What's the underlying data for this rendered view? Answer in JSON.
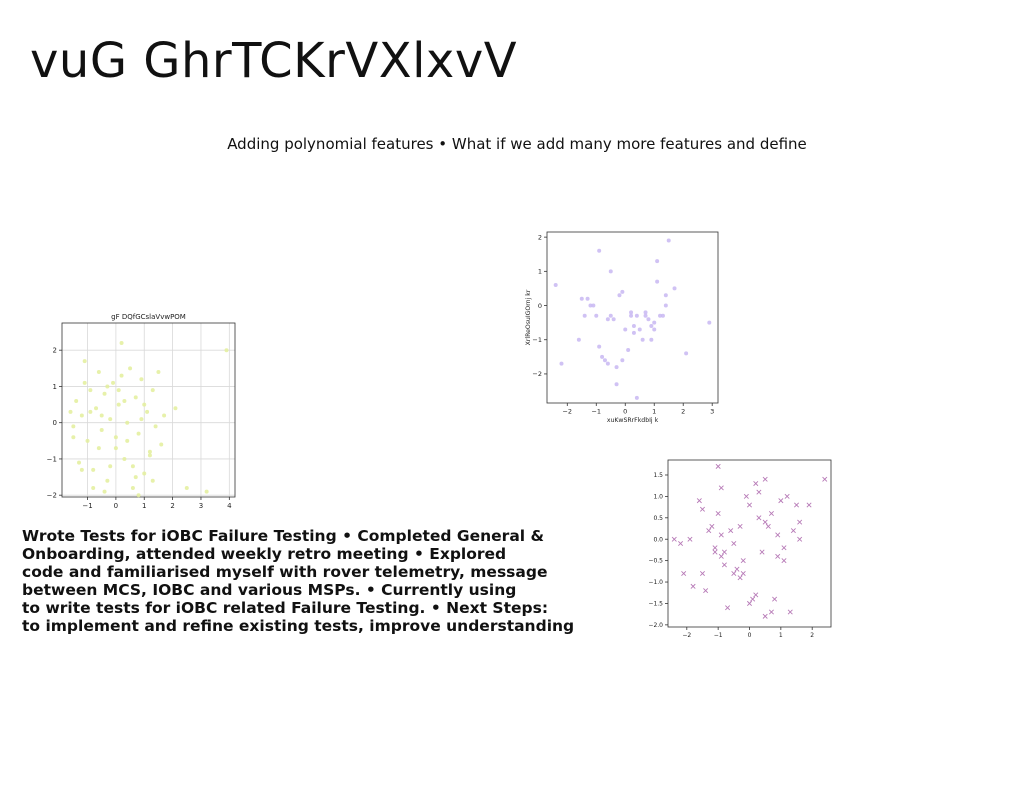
{
  "slide": {
    "title": "vuG GhrTCKrVXlxvV",
    "subtitle": "Adding polynomial features • What if we add many more features and define",
    "body": "Wrote Tests for iOBC Failure Testing • Completed General &\nOnboarding, attended weekly retro meeting • Explored\ncode and familiarised myself with rover telemetry, message\nbetween MCS, IOBC and various MSPs. • Currently using\nto write tests for iOBC related Failure Testing. • Next Steps:\nto implement and refine existing tests, improve understanding"
  },
  "chart_data": [
    {
      "type": "scatter",
      "title": "gF DQfGCslaVvwPOM",
      "xlabel": "",
      "ylabel": "",
      "xlim": [
        -1.9,
        4.2
      ],
      "ylim": [
        -2.05,
        2.75
      ],
      "xticks": [
        -1,
        0,
        1,
        2,
        3,
        4
      ],
      "yticks": [
        -2,
        -1,
        0,
        1,
        2
      ],
      "grid": true,
      "marker": "circle",
      "color": "#e3ef9b",
      "x": [
        -1.6,
        -1.5,
        -1.4,
        -1.3,
        -1.2,
        -1.1,
        -1.0,
        -0.9,
        -0.8,
        -0.7,
        -0.6,
        -0.5,
        -0.4,
        -0.3,
        -0.2,
        -0.1,
        0.0,
        0.1,
        0.2,
        0.3,
        0.4,
        0.5,
        0.6,
        0.7,
        0.8,
        0.9,
        1.0,
        1.1,
        1.2,
        1.3,
        1.4,
        1.5,
        1.6,
        1.7,
        2.1,
        2.5,
        3.2,
        3.9,
        -1.5,
        -1.2,
        -0.9,
        -0.6,
        -0.3,
        0.0,
        0.3,
        0.6,
        0.9,
        1.2,
        -1.1,
        -0.8,
        -0.5,
        -0.2,
        0.1,
        0.4,
        0.7,
        1.0,
        1.3,
        -0.4,
        0.2,
        0.8
      ],
      "y": [
        0.3,
        -0.4,
        0.6,
        -1.1,
        0.2,
        1.7,
        -0.5,
        0.9,
        -1.3,
        0.4,
        1.4,
        -0.2,
        0.8,
        -1.6,
        0.1,
        1.1,
        -0.7,
        0.5,
        2.2,
        -1.0,
        0.0,
        1.5,
        -1.8,
        0.7,
        -0.3,
        1.2,
        -1.4,
        0.3,
        -0.8,
        0.9,
        -0.1,
        1.4,
        -0.6,
        0.2,
        0.4,
        -1.8,
        -1.9,
        2.0,
        -0.1,
        -1.3,
        0.3,
        -0.7,
        1.0,
        -0.4,
        0.6,
        -1.2,
        0.1,
        -0.9,
        1.1,
        -1.8,
        0.2,
        -1.2,
        0.9,
        -0.5,
        -1.5,
        0.5,
        -1.6,
        -1.9,
        1.3,
        -2.0
      ]
    },
    {
      "type": "scatter",
      "title": "",
      "xlabel": "xuKwSRrFkdbIj k",
      "ylabel": "XrlReOsuIGOrnj kr",
      "xlim": [
        -2.7,
        3.2
      ],
      "ylim": [
        -2.85,
        2.15
      ],
      "xticks": [
        -2,
        -1,
        0,
        1,
        2,
        3
      ],
      "yticks": [
        -2,
        -1,
        0,
        1,
        2
      ],
      "grid": false,
      "marker": "circle",
      "color": "#c8b7f2",
      "x": [
        -2.4,
        -2.2,
        -1.6,
        -1.5,
        -1.4,
        -1.3,
        -1.1,
        -1.0,
        -0.9,
        -0.8,
        -0.7,
        -0.6,
        -0.5,
        -0.4,
        -0.3,
        -0.2,
        -0.1,
        0.0,
        0.1,
        0.2,
        0.3,
        0.4,
        0.5,
        0.6,
        0.7,
        0.8,
        0.9,
        1.0,
        1.1,
        1.2,
        1.3,
        1.4,
        1.5,
        1.7,
        2.1,
        2.9,
        -1.2,
        -0.9,
        -0.5,
        -0.1,
        0.3,
        0.7,
        1.1,
        1.4,
        -0.3,
        0.4,
        1.0,
        -0.6,
        0.2,
        0.9
      ],
      "y": [
        0.6,
        -1.7,
        -1.0,
        0.2,
        -0.3,
        0.2,
        0.0,
        -0.3,
        -1.2,
        -1.5,
        -1.6,
        -0.4,
        1.0,
        -0.4,
        -2.3,
        0.3,
        -1.6,
        -0.7,
        -1.3,
        -0.2,
        -0.6,
        -0.3,
        -0.7,
        -1.0,
        -0.3,
        -0.4,
        -1.0,
        -0.5,
        0.7,
        -0.3,
        -0.3,
        0.3,
        1.9,
        0.5,
        -1.4,
        -0.5,
        0.0,
        1.6,
        -0.3,
        0.4,
        -0.8,
        -0.2,
        1.3,
        0.0,
        -1.8,
        -2.7,
        -0.7,
        -1.7,
        -0.3,
        -0.6
      ]
    },
    {
      "type": "scatter",
      "title": "",
      "xlabel": "",
      "ylabel": "",
      "xlim": [
        -2.6,
        2.6
      ],
      "ylim": [
        -2.05,
        1.85
      ],
      "xticks": [
        -2,
        -1,
        0,
        1,
        2
      ],
      "yticks": [
        -2.0,
        -1.5,
        -1.0,
        -0.5,
        0.0,
        0.5,
        1.0,
        1.5
      ],
      "ytick_labels": [
        "−2.0",
        "−1.5",
        "−1.0",
        "−0.5",
        "0.0",
        "0.5",
        "1.0",
        "1.5"
      ],
      "grid": false,
      "marker": "x",
      "color": "#b77ab7",
      "x": [
        -2.4,
        -2.2,
        -2.1,
        -1.9,
        -1.8,
        -1.6,
        -1.5,
        -1.4,
        -1.3,
        -1.2,
        -1.1,
        -1.0,
        -1.0,
        -0.9,
        -0.9,
        -0.8,
        -0.7,
        -0.6,
        -0.5,
        -0.4,
        -0.3,
        -0.2,
        -0.1,
        0.0,
        0.0,
        0.1,
        0.2,
        0.3,
        0.4,
        0.5,
        0.5,
        0.6,
        0.7,
        0.8,
        0.9,
        1.0,
        1.1,
        1.2,
        1.4,
        1.5,
        1.6,
        1.9,
        2.4,
        -1.5,
        -0.8,
        -0.3,
        0.2,
        0.7,
        1.1,
        1.6,
        -1.1,
        -0.5,
        0.3,
        0.9,
        -0.2,
        0.5,
        -0.9,
        1.3
      ],
      "y": [
        0.0,
        -0.1,
        -0.8,
        0.0,
        -1.1,
        0.9,
        -0.8,
        -1.2,
        0.2,
        0.3,
        -0.2,
        1.7,
        0.6,
        -0.4,
        1.2,
        -0.6,
        -1.6,
        0.2,
        -0.1,
        -0.7,
        0.3,
        -0.5,
        1.0,
        -1.5,
        0.8,
        -1.4,
        1.3,
        0.5,
        -0.3,
        1.4,
        -1.8,
        0.3,
        -1.7,
        -1.4,
        0.1,
        0.9,
        -0.5,
        1.0,
        0.2,
        0.8,
        0.0,
        0.8,
        1.4,
        0.7,
        -0.3,
        -0.9,
        -1.3,
        0.6,
        -0.2,
        0.4,
        -0.3,
        -0.8,
        1.1,
        -0.4,
        -0.8,
        0.4,
        0.1,
        -1.7
      ]
    }
  ]
}
